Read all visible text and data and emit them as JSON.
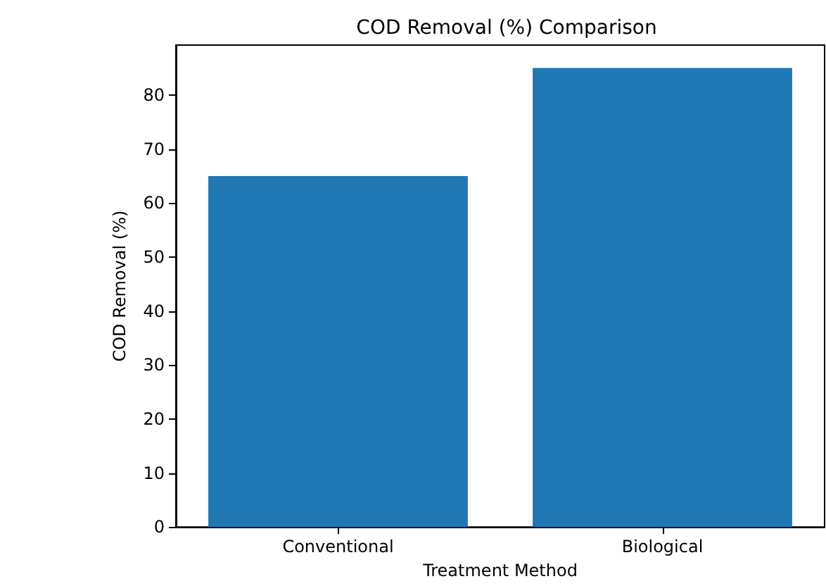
{
  "chart_data": {
    "type": "bar",
    "title": "COD Removal (%) Comparison",
    "xlabel": "Treatment Method",
    "ylabel": "COD Removal (%)",
    "categories": [
      "Conventional",
      "Biological"
    ],
    "values": [
      65,
      85
    ],
    "color": "#1f77b4",
    "ylim": [
      0,
      89.25
    ],
    "yticks": [
      0,
      10,
      20,
      30,
      40,
      50,
      60,
      70,
      80
    ],
    "grid": false
  }
}
